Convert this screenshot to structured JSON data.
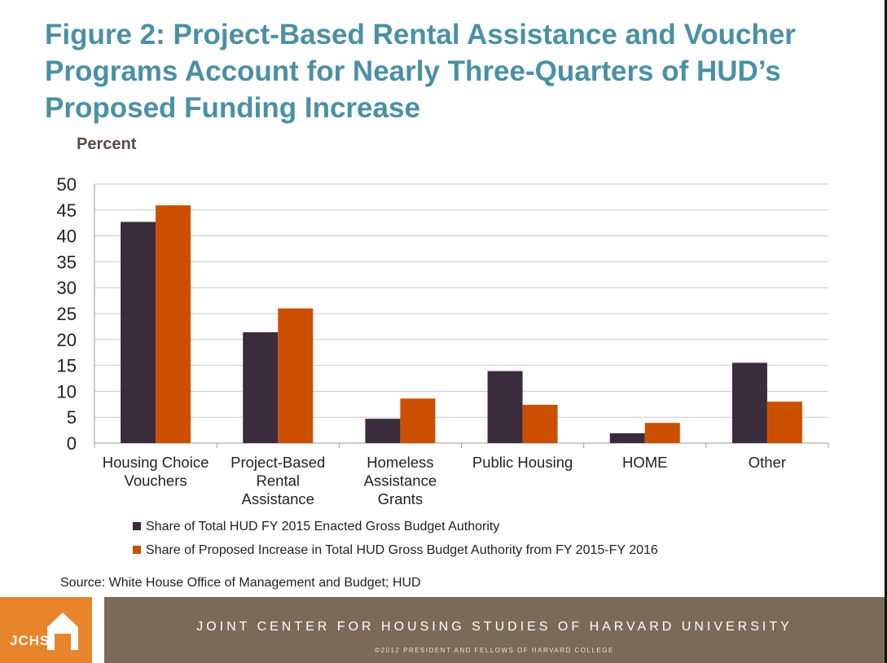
{
  "title": "Figure 2: Project-Based Rental Assistance and Voucher Programs Account for Nearly Three-Quarters of HUD’s Proposed Funding Increase",
  "source": "Source: White House Office of Management and Budget; HUD",
  "footer": {
    "logo_text": "JCHS",
    "logo_icon": "house-icon",
    "title": "JOINT CENTER FOR HOUSING STUDIES OF HARVARD UNIVERSITY",
    "copyright": "©2012 PRESIDENT AND FELLOWS OF HARVARD COLLEGE",
    "logo_color": "#e8842a",
    "band_color": "#7b6a58"
  },
  "chart_data": {
    "type": "bar",
    "title": "",
    "ylabel": "Percent",
    "xlabel": "",
    "ylim": [
      0,
      50
    ],
    "yticks": [
      0,
      5,
      10,
      15,
      20,
      25,
      30,
      35,
      40,
      45,
      50
    ],
    "grid": true,
    "legend_position": "bottom",
    "categories": [
      [
        "Housing Choice",
        "Vouchers"
      ],
      [
        "Project-Based",
        "Rental",
        "Assistance"
      ],
      [
        "Homeless",
        "Assistance",
        "Grants"
      ],
      [
        "Public Housing"
      ],
      [
        "HOME"
      ],
      [
        "Other"
      ]
    ],
    "series": [
      {
        "name": "Share of Total HUD FY 2015 Enacted Gross Budget Authority",
        "color": "#3a2b3d",
        "values": [
          42.7,
          21.4,
          4.7,
          13.9,
          1.9,
          15.5
        ]
      },
      {
        "name": "Share of Proposed Increase in Total HUD Gross Budget Authority from FY 2015-FY 2016",
        "color": "#cc4f00",
        "values": [
          45.9,
          26.0,
          8.6,
          7.4,
          3.9,
          8.0
        ]
      }
    ]
  }
}
